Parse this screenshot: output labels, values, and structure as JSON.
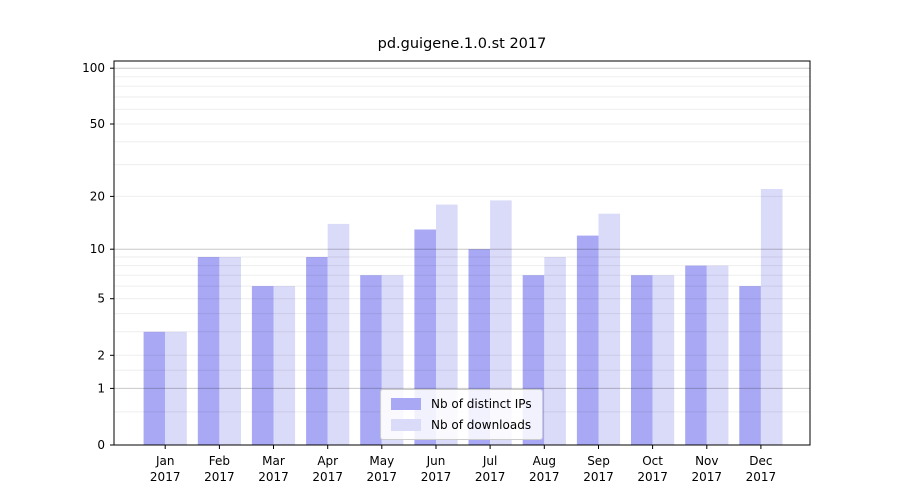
{
  "chart_data": {
    "type": "bar",
    "title": "pd.guigene.1.0.st 2017",
    "categories": [
      "Jan",
      "Feb",
      "Mar",
      "Apr",
      "May",
      "Jun",
      "Jul",
      "Aug",
      "Sep",
      "Oct",
      "Nov",
      "Dec"
    ],
    "category_year": "2017",
    "series": [
      {
        "name": "Nb of distinct IPs",
        "color": "#a8a8f4",
        "values": [
          3,
          9,
          6,
          9,
          7,
          13,
          10,
          7,
          12,
          7,
          8,
          6
        ]
      },
      {
        "name": "Nb of downloads",
        "color": "#dadaf9",
        "values": [
          3,
          9,
          6,
          14,
          7,
          18,
          19,
          9,
          16,
          7,
          8,
          22
        ]
      }
    ],
    "xlabel": "",
    "ylabel": "",
    "y_scale": "log10(1+value)",
    "ylim": [
      0,
      101
    ],
    "y_tick_labels": [
      0,
      1,
      2,
      5,
      10,
      20,
      50,
      100
    ],
    "y_major_gridlines": [
      1,
      10,
      100
    ],
    "y_minor_gridlines": [
      0.5,
      1.5,
      2,
      3,
      4,
      5,
      6,
      7,
      8,
      9,
      20,
      30,
      40,
      50,
      60,
      70,
      80,
      90
    ],
    "grid": "on",
    "legend_position": "lower center"
  },
  "colors": {
    "background": "#ffffff",
    "axis": "#000000",
    "tick_text": "#000000",
    "major_grid": "rgba(0,0,0,0.22)",
    "minor_grid": "rgba(0,0,0,0.065)"
  }
}
